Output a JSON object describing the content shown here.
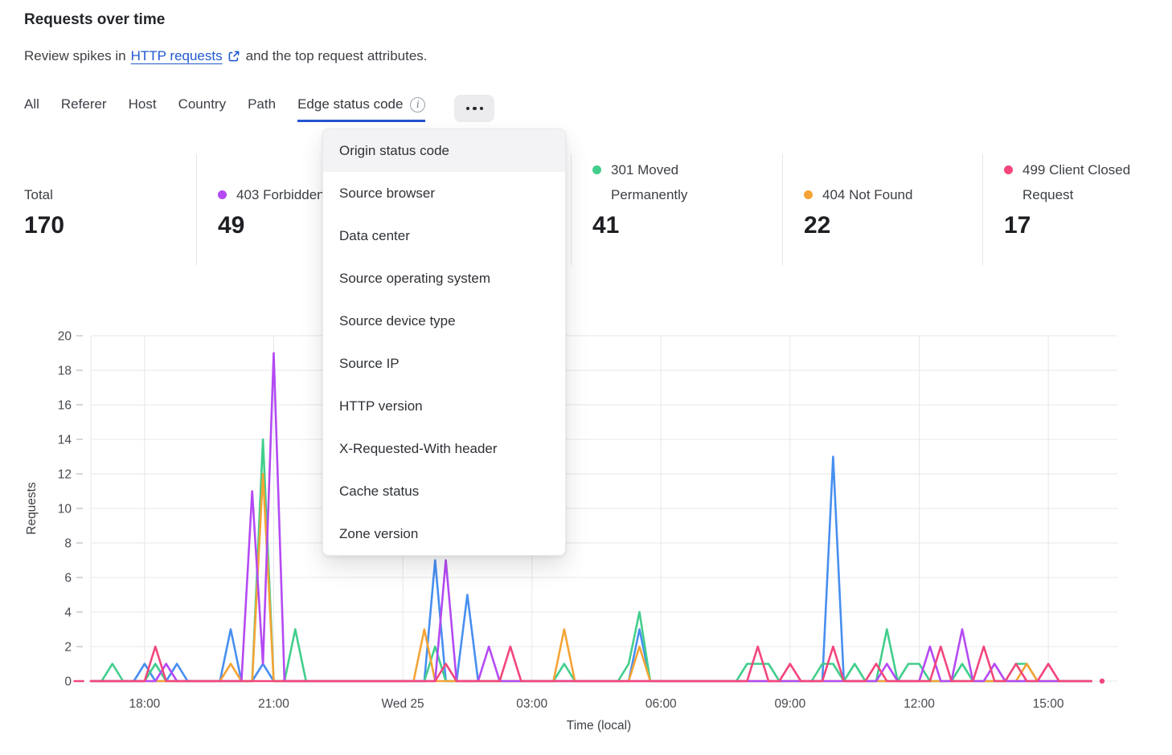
{
  "header": {
    "title": "Requests over time",
    "subtitle_prefix": "Review spikes in",
    "link_text": "HTTP requests",
    "subtitle_suffix": "and the top request attributes."
  },
  "icons": {
    "info": "i",
    "external_link": "open-in-new-tab"
  },
  "tabs": {
    "items": [
      "All",
      "Referer",
      "Host",
      "Country",
      "Path",
      "Edge status code"
    ],
    "active": "Edge status code"
  },
  "menu": {
    "selected": "Origin status code",
    "items": [
      "Origin status code",
      "Source browser",
      "Data center",
      "Source operating system",
      "Source device type",
      "Source IP",
      "HTTP version",
      "X-Requested-With header",
      "Cache status",
      "Zone version"
    ]
  },
  "stats": [
    {
      "label": "Total",
      "value": "170",
      "color": ""
    },
    {
      "label": "403 Forbidden",
      "value": "49",
      "color": "#b44af3"
    },
    {
      "label": "",
      "value": "",
      "color": ""
    },
    {
      "label": "301 Moved Permanently",
      "value": "41",
      "color": "#41ce8c"
    },
    {
      "label": "404 Not Found",
      "value": "22",
      "color": "#f4a436"
    },
    {
      "label": "499 Client Closed Request",
      "value": "17",
      "color": "#f2467c"
    }
  ],
  "chart_data": {
    "type": "line",
    "title": "Requests over time",
    "xlabel": "Time (local)",
    "ylabel": "Requests",
    "ylim": [
      0,
      20
    ],
    "y_ticks": [
      0,
      2,
      4,
      6,
      8,
      10,
      12,
      14,
      16,
      18,
      20
    ],
    "x_ticks": [
      {
        "time": "18:00",
        "label": "18:00"
      },
      {
        "time": "21:00",
        "label": "21:00"
      },
      {
        "time": "00:00",
        "label": "Wed 25"
      },
      {
        "time": "03:00",
        "label": "03:00"
      },
      {
        "time": "06:00",
        "label": "06:00"
      },
      {
        "time": "09:00",
        "label": "09:00"
      },
      {
        "time": "12:00",
        "label": "12:00"
      },
      {
        "time": "15:00",
        "label": "15:00"
      }
    ],
    "x_start": "16:30",
    "x_end": "16:15",
    "interval_minutes": 15,
    "grid": true,
    "note_sparse": "points list nonzero 15-min buckets; all other buckets are 0",
    "series": [
      {
        "name": "",
        "color": "#478ff0",
        "points": [
          [
            "18:00",
            1
          ],
          [
            "18:45",
            1
          ],
          [
            "20:00",
            3
          ],
          [
            "20:45",
            1
          ],
          [
            "00:45",
            7
          ],
          [
            "01:30",
            5
          ],
          [
            "05:30",
            3
          ],
          [
            "10:00",
            13
          ]
        ]
      },
      {
        "name": "301 Moved Permanently",
        "color": "#41ce8c",
        "points": [
          [
            "17:15",
            1
          ],
          [
            "18:15",
            1
          ],
          [
            "20:45",
            14
          ],
          [
            "21:30",
            3
          ],
          [
            "00:45",
            2
          ],
          [
            "03:45",
            1
          ],
          [
            "05:15",
            1
          ],
          [
            "05:30",
            4
          ],
          [
            "08:00",
            1
          ],
          [
            "08:15",
            1
          ],
          [
            "08:30",
            1
          ],
          [
            "09:45",
            1
          ],
          [
            "10:00",
            1
          ],
          [
            "10:30",
            1
          ],
          [
            "11:15",
            3
          ],
          [
            "11:45",
            1
          ],
          [
            "12:00",
            1
          ],
          [
            "13:00",
            1
          ],
          [
            "14:15",
            1
          ],
          [
            "14:30",
            1
          ]
        ]
      },
      {
        "name": "404 Not Found",
        "color": "#f4a436",
        "points": [
          [
            "20:00",
            1
          ],
          [
            "20:45",
            12
          ],
          [
            "00:30",
            3
          ],
          [
            "03:45",
            3
          ],
          [
            "05:30",
            2
          ],
          [
            "14:30",
            1
          ]
        ]
      },
      {
        "name": "403 Forbidden",
        "color": "#b44af3",
        "points": [
          [
            "18:30",
            1
          ],
          [
            "20:30",
            11
          ],
          [
            "20:45",
            1
          ],
          [
            "21:00",
            19
          ],
          [
            "01:00",
            7
          ],
          [
            "02:00",
            2
          ],
          [
            "11:15",
            1
          ],
          [
            "12:15",
            2
          ],
          [
            "13:00",
            3
          ],
          [
            "13:45",
            1
          ]
        ]
      },
      {
        "name": "499 Client Closed Request",
        "color": "#f2467c",
        "endpoint_dots": true,
        "points": [
          [
            "18:15",
            2
          ],
          [
            "01:00",
            1
          ],
          [
            "02:30",
            2
          ],
          [
            "08:15",
            2
          ],
          [
            "09:00",
            1
          ],
          [
            "10:00",
            2
          ],
          [
            "11:00",
            1
          ],
          [
            "12:30",
            2
          ],
          [
            "13:30",
            2
          ],
          [
            "14:15",
            1
          ],
          [
            "15:00",
            1
          ]
        ]
      }
    ]
  }
}
